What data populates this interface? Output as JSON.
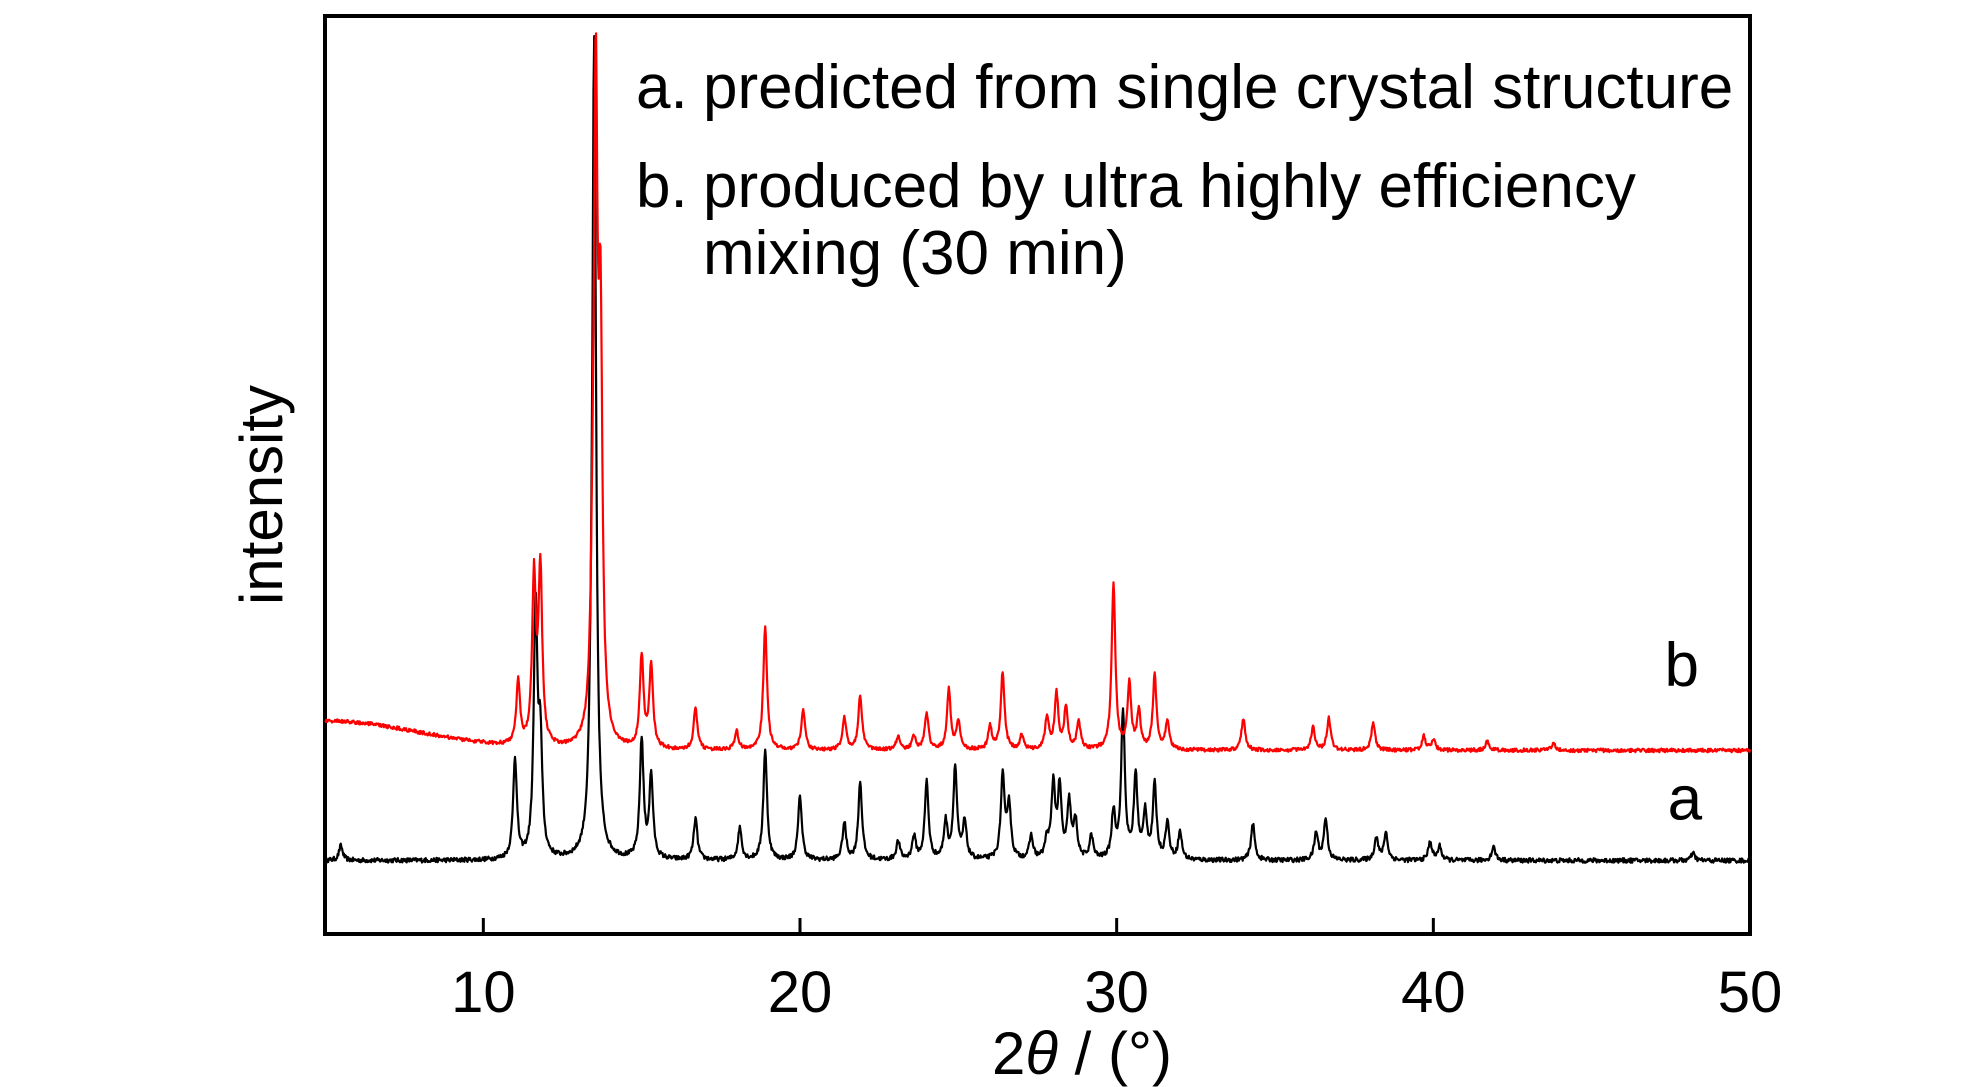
{
  "chart_data": {
    "type": "line",
    "title": "",
    "xlabel_prefix": "2",
    "xlabel_theta": "θ",
    "xlabel_suffix": " / (°)",
    "ylabel": "intensity",
    "xlim": [
      5,
      50
    ],
    "ylim": [
      0,
      100
    ],
    "xticks": [
      10,
      20,
      30,
      40,
      50
    ],
    "yticks": [],
    "grid": false,
    "legend": {
      "position": "top-right",
      "entries": [
        {
          "marker": "a.",
          "lines": [
            "predicted from single crystal structure"
          ]
        },
        {
          "marker": "b.",
          "lines": [
            "produced by ultra highly efficiency",
            "mixing (30 min)"
          ]
        }
      ]
    },
    "series": [
      {
        "label": "a",
        "color": "#000000",
        "baseline": 8,
        "noise": 0.5,
        "label_x": 47.4,
        "label_y": 12.5,
        "peaks": [
          [
            5.5,
            1.6
          ],
          [
            11.0,
            11.0
          ],
          [
            11.65,
            27.0
          ],
          [
            11.8,
            12.0
          ],
          [
            13.4,
            5.0
          ],
          [
            13.5,
            88.0
          ],
          [
            15.0,
            13.0
          ],
          [
            15.3,
            9.0
          ],
          [
            16.7,
            4.5
          ],
          [
            18.1,
            3.5
          ],
          [
            18.9,
            12.0
          ],
          [
            20.0,
            7.0
          ],
          [
            21.4,
            4.0
          ],
          [
            21.9,
            8.5
          ],
          [
            23.1,
            2.0
          ],
          [
            23.6,
            2.5
          ],
          [
            24.0,
            8.5
          ],
          [
            24.6,
            4.0
          ],
          [
            24.9,
            10.0
          ],
          [
            25.2,
            4.0
          ],
          [
            26.4,
            9.0
          ],
          [
            26.6,
            6.0
          ],
          [
            27.3,
            2.5
          ],
          [
            27.8,
            2.0
          ],
          [
            28.0,
            8.0
          ],
          [
            28.2,
            7.5
          ],
          [
            28.5,
            6.0
          ],
          [
            28.7,
            4.0
          ],
          [
            29.2,
            2.5
          ],
          [
            29.9,
            5.0
          ],
          [
            30.2,
            16.0
          ],
          [
            30.6,
            9.0
          ],
          [
            30.9,
            5.0
          ],
          [
            31.2,
            8.0
          ],
          [
            31.6,
            4.0
          ],
          [
            32.0,
            3.0
          ],
          [
            34.3,
            4.0
          ],
          [
            36.3,
            3.0
          ],
          [
            36.6,
            4.5
          ],
          [
            38.2,
            2.5
          ],
          [
            38.5,
            3.0
          ],
          [
            39.9,
            2.0
          ],
          [
            40.2,
            1.5
          ],
          [
            41.9,
            1.5
          ],
          [
            48.2,
            0.8
          ]
        ]
      },
      {
        "label": "b",
        "color": "#ff0000",
        "baseline": 20,
        "noise": 0.4,
        "label_x": 47.3,
        "label_y": 27.0,
        "peaks": [
          [
            11.1,
            7.0
          ],
          [
            11.6,
            18.0
          ],
          [
            11.8,
            19.0
          ],
          [
            13.45,
            10.0
          ],
          [
            13.55,
            68.0
          ],
          [
            13.7,
            42.0
          ],
          [
            15.0,
            10.0
          ],
          [
            15.3,
            9.0
          ],
          [
            16.7,
            4.5
          ],
          [
            18.0,
            2.0
          ],
          [
            18.9,
            13.5
          ],
          [
            20.1,
            4.5
          ],
          [
            21.4,
            3.5
          ],
          [
            21.9,
            6.0
          ],
          [
            23.1,
            1.5
          ],
          [
            23.6,
            1.5
          ],
          [
            24.0,
            4.0
          ],
          [
            24.7,
            6.5
          ],
          [
            25.0,
            3.0
          ],
          [
            26.4,
            8.5
          ],
          [
            26.0,
            2.5
          ],
          [
            27.0,
            1.5
          ],
          [
            27.8,
            3.5
          ],
          [
            28.1,
            6.0
          ],
          [
            28.4,
            4.5
          ],
          [
            28.8,
            3.0
          ],
          [
            29.9,
            18.0
          ],
          [
            30.4,
            7.0
          ],
          [
            30.7,
            4.0
          ],
          [
            31.2,
            8.0
          ],
          [
            31.6,
            3.0
          ],
          [
            34.0,
            3.5
          ],
          [
            36.2,
            2.5
          ],
          [
            36.7,
            3.5
          ],
          [
            38.1,
            3.0
          ],
          [
            39.7,
            1.5
          ],
          [
            40.0,
            1.2
          ],
          [
            41.7,
            1.0
          ],
          [
            43.8,
            0.8
          ]
        ]
      }
    ]
  }
}
